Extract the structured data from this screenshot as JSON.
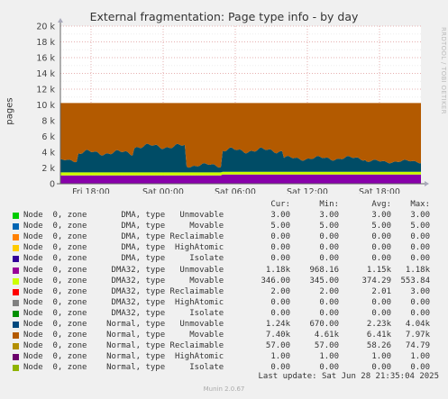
{
  "title": "External fragmentation: Page type info - by day",
  "side_label": "RRDTOOL / TOBI OETIKER",
  "chart_data": {
    "type": "area",
    "title": "External fragmentation: Page type info - by day",
    "ylabel": "pages",
    "xlabel": "",
    "ylim": [
      0,
      20000
    ],
    "yticks": [
      "0",
      "2 k",
      "4 k",
      "6 k",
      "8 k",
      "10 k",
      "12 k",
      "14 k",
      "16 k",
      "18 k",
      "20 k"
    ],
    "xticks": [
      "Fri 18:00",
      "Sat 00:00",
      "Sat 06:00",
      "Sat 12:00",
      "Sat 18:00"
    ],
    "grid": true,
    "layers": [
      {
        "name": "Node 0, zone DMA32, type Unmovable",
        "color": "#8800aa",
        "approx_value": 1180
      },
      {
        "name": "Node 0, zone DMA32, type Movable",
        "color": "#ccff00",
        "approx_value": 345
      },
      {
        "name": "Node 0, zone Normal, type Unmovable",
        "color": "#004c66",
        "approx_value": 2230
      },
      {
        "name": "Node 0, zone Normal, type Movable",
        "color": "#b35a00",
        "approx_value": 7400
      }
    ],
    "total_approx": 10240
  },
  "legend": {
    "headers": [
      "Cur:",
      "Min:",
      "Avg:",
      "Max:"
    ],
    "rows": [
      {
        "color": "#00cc00",
        "label": "Node  0, zone       DMA, type   Unmovable",
        "cur": "3.00",
        "min": "3.00",
        "avg": "3.00",
        "max": "3.00"
      },
      {
        "color": "#0066b3",
        "label": "Node  0, zone       DMA, type     Movable",
        "cur": "5.00",
        "min": "5.00",
        "avg": "5.00",
        "max": "5.00"
      },
      {
        "color": "#ff8000",
        "label": "Node  0, zone       DMA, type Reclaimable",
        "cur": "0.00",
        "min": "0.00",
        "avg": "0.00",
        "max": "0.00"
      },
      {
        "color": "#ffcc00",
        "label": "Node  0, zone       DMA, type  HighAtomic",
        "cur": "0.00",
        "min": "0.00",
        "avg": "0.00",
        "max": "0.00"
      },
      {
        "color": "#330099",
        "label": "Node  0, zone       DMA, type     Isolate",
        "cur": "0.00",
        "min": "0.00",
        "avg": "0.00",
        "max": "0.00"
      },
      {
        "color": "#990099",
        "label": "Node  0, zone     DMA32, type   Unmovable",
        "cur": "1.18k",
        "min": "968.16",
        "avg": "1.15k",
        "max": "1.18k"
      },
      {
        "color": "#ccff00",
        "label": "Node  0, zone     DMA32, type     Movable",
        "cur": "346.00",
        "min": "345.00",
        "avg": "374.29",
        "max": "553.84"
      },
      {
        "color": "#ff0000",
        "label": "Node  0, zone     DMA32, type Reclaimable",
        "cur": "2.00",
        "min": "2.00",
        "avg": "2.01",
        "max": "3.00"
      },
      {
        "color": "#808080",
        "label": "Node  0, zone     DMA32, type  HighAtomic",
        "cur": "0.00",
        "min": "0.00",
        "avg": "0.00",
        "max": "0.00"
      },
      {
        "color": "#008f00",
        "label": "Node  0, zone     DMA32, type     Isolate",
        "cur": "0.00",
        "min": "0.00",
        "avg": "0.00",
        "max": "0.00"
      },
      {
        "color": "#00487d",
        "label": "Node  0, zone    Normal, type   Unmovable",
        "cur": "1.24k",
        "min": "670.00",
        "avg": "2.23k",
        "max": "4.04k"
      },
      {
        "color": "#b35a00",
        "label": "Node  0, zone    Normal, type     Movable",
        "cur": "7.40k",
        "min": "4.61k",
        "avg": "6.41k",
        "max": "7.97k"
      },
      {
        "color": "#b38f00",
        "label": "Node  0, zone    Normal, type Reclaimable",
        "cur": "57.00",
        "min": "57.00",
        "avg": "58.26",
        "max": "74.79"
      },
      {
        "color": "#6b006b",
        "label": "Node  0, zone    Normal, type  HighAtomic",
        "cur": "1.00",
        "min": "1.00",
        "avg": "1.00",
        "max": "1.00"
      },
      {
        "color": "#8fb300",
        "label": "Node  0, zone    Normal, type     Isolate",
        "cur": "0.00",
        "min": "0.00",
        "avg": "0.00",
        "max": "0.00"
      }
    ]
  },
  "last_update": "Last update: Sat Jun 28 21:35:04 2025",
  "footer": "Munin 2.0.67"
}
